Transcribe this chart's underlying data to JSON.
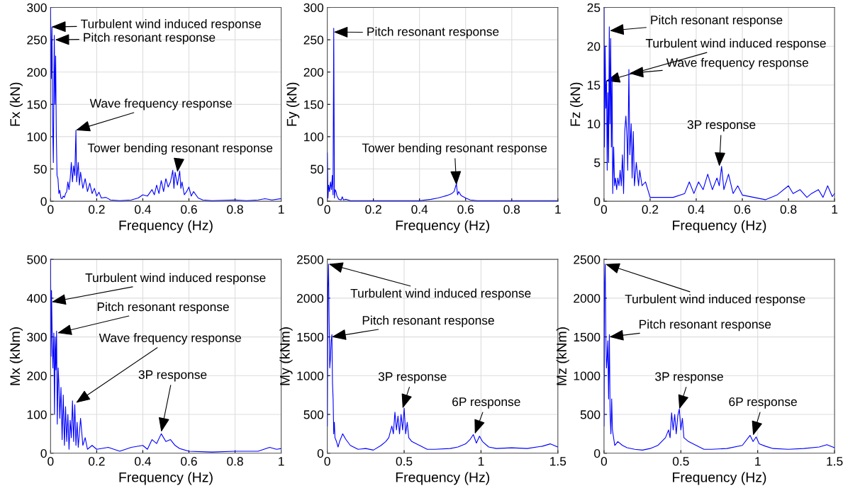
{
  "chart_data": [
    {
      "type": "line",
      "xlabel": "Frequency (Hz)",
      "ylabel": "Fx (kN)",
      "xlim": [
        0,
        1
      ],
      "ylim": [
        0,
        300
      ],
      "xticks": [
        0,
        0.2,
        0.4,
        0.6,
        0.8,
        1
      ],
      "yticks": [
        0,
        50,
        100,
        150,
        200,
        250,
        300
      ],
      "grid": true,
      "color": "#0000ff",
      "x": [
        0,
        0.003,
        0.006,
        0.009,
        0.012,
        0.016,
        0.019,
        0.022,
        0.025,
        0.028,
        0.032,
        0.036,
        0.04,
        0.045,
        0.05,
        0.055,
        0.06,
        0.065,
        0.07,
        0.075,
        0.08,
        0.085,
        0.09,
        0.095,
        0.1,
        0.105,
        0.11,
        0.113,
        0.12,
        0.125,
        0.13,
        0.14,
        0.15,
        0.16,
        0.17,
        0.18,
        0.19,
        0.2,
        0.21,
        0.22,
        0.24,
        0.26,
        0.3,
        0.35,
        0.38,
        0.4,
        0.42,
        0.44,
        0.45,
        0.46,
        0.47,
        0.48,
        0.49,
        0.5,
        0.51,
        0.52,
        0.53,
        0.535,
        0.54,
        0.55,
        0.56,
        0.565,
        0.57,
        0.58,
        0.59,
        0.6,
        0.61,
        0.62,
        0.64,
        0.66,
        0.7,
        0.8,
        0.85,
        0.9,
        0.93,
        0.96,
        1.0
      ],
      "values": [
        300,
        190,
        270,
        120,
        60,
        257,
        150,
        225,
        100,
        40,
        35,
        12,
        17,
        5,
        4,
        8,
        6,
        12,
        15,
        30,
        18,
        35,
        60,
        30,
        55,
        40,
        110,
        30,
        60,
        25,
        45,
        20,
        35,
        15,
        28,
        12,
        20,
        8,
        14,
        5,
        6,
        2,
        1,
        2,
        5,
        10,
        8,
        18,
        10,
        25,
        12,
        32,
        15,
        35,
        22,
        30,
        48,
        20,
        45,
        25,
        47,
        20,
        30,
        10,
        15,
        22,
        8,
        15,
        5,
        2,
        1,
        2,
        1,
        2,
        4,
        2,
        4
      ],
      "annotations": [
        {
          "text": "Turbulent wind induced response",
          "x": 0.005,
          "y": 270
        },
        {
          "text": "Pitch resonant response",
          "x": 0.02,
          "y": 250
        },
        {
          "text": "Wave frequency response",
          "x": 0.11,
          "y": 110
        },
        {
          "text": "Tower bending resonant response",
          "x": 0.55,
          "y": 45
        }
      ]
    },
    {
      "type": "line",
      "xlabel": "Frequency (Hz)",
      "ylabel": "Fy (kN)",
      "xlim": [
        0,
        1
      ],
      "ylim": [
        0,
        300
      ],
      "xticks": [
        0,
        0.2,
        0.4,
        0.6,
        0.8,
        1
      ],
      "yticks": [
        0,
        50,
        100,
        150,
        200,
        250,
        300
      ],
      "grid": true,
      "color": "#0000ff",
      "x": [
        0,
        0.003,
        0.006,
        0.01,
        0.014,
        0.018,
        0.022,
        0.025,
        0.028,
        0.031,
        0.034,
        0.038,
        0.042,
        0.05,
        0.06,
        0.065,
        0.07,
        0.08,
        0.1,
        0.2,
        0.3,
        0.4,
        0.45,
        0.48,
        0.5,
        0.52,
        0.54,
        0.55,
        0.56,
        0.565,
        0.57,
        0.58,
        0.6,
        0.62,
        0.65,
        0.7,
        0.8,
        1.0
      ],
      "values": [
        75,
        5,
        25,
        15,
        30,
        18,
        40,
        10,
        268,
        5,
        18,
        15,
        8,
        3,
        2,
        7,
        2,
        3,
        1,
        1,
        1,
        1,
        3,
        5,
        7,
        9,
        12,
        15,
        27,
        10,
        15,
        9,
        5,
        2,
        1,
        1,
        1,
        1
      ],
      "annotations": [
        {
          "text": "Pitch resonant response",
          "x": 0.028,
          "y": 262
        },
        {
          "text": "Tower bending resonant response",
          "x": 0.56,
          "y": 25
        }
      ]
    },
    {
      "type": "line",
      "xlabel": "Frequency (Hz)",
      "ylabel": "Fz (kN)",
      "xlim": [
        0,
        1
      ],
      "ylim": [
        0,
        25
      ],
      "xticks": [
        0,
        0.2,
        0.4,
        0.6,
        0.8,
        1
      ],
      "yticks": [
        0,
        5,
        10,
        15,
        20,
        25
      ],
      "grid": true,
      "color": "#0000ff",
      "x": [
        0,
        0.002,
        0.005,
        0.008,
        0.011,
        0.014,
        0.017,
        0.02,
        0.023,
        0.026,
        0.029,
        0.032,
        0.035,
        0.038,
        0.042,
        0.046,
        0.05,
        0.055,
        0.06,
        0.065,
        0.07,
        0.075,
        0.08,
        0.085,
        0.09,
        0.095,
        0.1,
        0.103,
        0.108,
        0.112,
        0.118,
        0.122,
        0.127,
        0.132,
        0.14,
        0.15,
        0.155,
        0.165,
        0.18,
        0.2,
        0.25,
        0.3,
        0.35,
        0.37,
        0.39,
        0.41,
        0.43,
        0.45,
        0.47,
        0.49,
        0.5,
        0.51,
        0.52,
        0.54,
        0.56,
        0.58,
        0.6,
        0.65,
        0.7,
        0.75,
        0.8,
        0.82,
        0.85,
        0.88,
        0.9,
        0.93,
        0.95,
        0.97,
        0.99,
        1.0
      ],
      "values": [
        25,
        7,
        20,
        12,
        15.5,
        4,
        14,
        5,
        22.5,
        10,
        21,
        7,
        16,
        1,
        7,
        2,
        3,
        1.5,
        3,
        2,
        4,
        2,
        6,
        1,
        9,
        11,
        8,
        4,
        17,
        6,
        10,
        3,
        9,
        2,
        5,
        2,
        4,
        2,
        2.5,
        0.5,
        0.5,
        0.5,
        1,
        2.5,
        1,
        2.5,
        1.5,
        3.5,
        1.5,
        3,
        2,
        4.5,
        1.5,
        3.5,
        1,
        2,
        0.8,
        0.5,
        0.2,
        0.8,
        2,
        1,
        1.5,
        0.5,
        1,
        1.5,
        0.5,
        2,
        0.6,
        1
      ],
      "annotations": [
        {
          "text": "Pitch resonant response",
          "x": 0.025,
          "y": 22
        },
        {
          "text": "Turbulent wind induced response",
          "x": 0.008,
          "y": 15.5
        },
        {
          "text": "Wave frequency response",
          "x": 0.11,
          "y": 16.5
        },
        {
          "text": "3P response",
          "x": 0.5,
          "y": 4.5
        }
      ]
    },
    {
      "type": "line",
      "xlabel": "Frequency (Hz)",
      "ylabel": "Mx (kNm)",
      "xlim": [
        0,
        1
      ],
      "ylim": [
        0,
        500
      ],
      "xticks": [
        0,
        0.2,
        0.4,
        0.6,
        0.8,
        1
      ],
      "yticks": [
        0,
        100,
        200,
        300,
        400,
        500
      ],
      "grid": true,
      "color": "#0000ff",
      "x": [
        0,
        0.002,
        0.004,
        0.007,
        0.01,
        0.014,
        0.017,
        0.02,
        0.023,
        0.026,
        0.029,
        0.033,
        0.036,
        0.04,
        0.045,
        0.05,
        0.055,
        0.06,
        0.065,
        0.07,
        0.075,
        0.08,
        0.085,
        0.09,
        0.095,
        0.1,
        0.105,
        0.11,
        0.115,
        0.12,
        0.13,
        0.14,
        0.15,
        0.16,
        0.18,
        0.2,
        0.25,
        0.3,
        0.35,
        0.4,
        0.42,
        0.44,
        0.46,
        0.48,
        0.5,
        0.52,
        0.54,
        0.56,
        0.6,
        0.7,
        0.8,
        0.9,
        0.95,
        0.98,
        1.0
      ],
      "values": [
        500,
        250,
        420,
        300,
        220,
        310,
        100,
        300,
        215,
        315,
        75,
        220,
        180,
        90,
        170,
        35,
        150,
        20,
        120,
        30,
        100,
        10,
        85,
        40,
        135,
        30,
        125,
        20,
        80,
        15,
        90,
        20,
        40,
        10,
        20,
        10,
        15,
        5,
        15,
        20,
        10,
        35,
        25,
        50,
        30,
        35,
        20,
        12,
        5,
        3,
        5,
        5,
        15,
        10,
        12
      ],
      "annotations": [
        {
          "text": "Turbulent wind induced response",
          "x": 0.005,
          "y": 390
        },
        {
          "text": "Pitch resonant response",
          "x": 0.03,
          "y": 310
        },
        {
          "text": "Wave frequency response",
          "x": 0.11,
          "y": 130
        },
        {
          "text": "3P response",
          "x": 0.48,
          "y": 55
        }
      ]
    },
    {
      "type": "line",
      "xlabel": "Frequency (Hz)",
      "ylabel": "My (kNm)",
      "xlim": [
        0,
        1.5
      ],
      "ylim": [
        0,
        2500
      ],
      "xticks": [
        0,
        0.5,
        1,
        1.5
      ],
      "yticks": [
        0,
        500,
        1000,
        1500,
        2000,
        2500
      ],
      "grid": true,
      "color": "#0000ff",
      "x": [
        0,
        0.004,
        0.008,
        0.012,
        0.016,
        0.02,
        0.025,
        0.03,
        0.034,
        0.038,
        0.042,
        0.046,
        0.05,
        0.06,
        0.07,
        0.08,
        0.1,
        0.12,
        0.15,
        0.2,
        0.25,
        0.3,
        0.35,
        0.38,
        0.4,
        0.42,
        0.43,
        0.44,
        0.45,
        0.46,
        0.47,
        0.48,
        0.49,
        0.5,
        0.51,
        0.52,
        0.53,
        0.55,
        0.6,
        0.65,
        0.7,
        0.8,
        0.85,
        0.9,
        0.93,
        0.95,
        0.97,
        0.99,
        1.01,
        1.05,
        1.1,
        1.2,
        1.3,
        1.4,
        1.45,
        1.5
      ],
      "values": [
        350,
        2150,
        2440,
        1700,
        1100,
        1200,
        1450,
        1530,
        900,
        700,
        250,
        400,
        200,
        150,
        80,
        150,
        250,
        180,
        100,
        50,
        60,
        40,
        100,
        150,
        200,
        350,
        250,
        530,
        300,
        480,
        250,
        500,
        300,
        580,
        250,
        400,
        200,
        150,
        100,
        50,
        50,
        60,
        80,
        120,
        180,
        240,
        130,
        220,
        150,
        80,
        60,
        70,
        60,
        90,
        120,
        80
      ],
      "annotations": [
        {
          "text": "Turbulent wind induced response",
          "x": 0.01,
          "y": 2440
        },
        {
          "text": "Pitch resonant response",
          "x": 0.03,
          "y": 1500
        },
        {
          "text": "3P response",
          "x": 0.49,
          "y": 580
        },
        {
          "text": "6P response",
          "x": 0.96,
          "y": 250
        }
      ]
    },
    {
      "type": "line",
      "xlabel": "Frequency (Hz)",
      "ylabel": "Mz (kNm)",
      "xlim": [
        0,
        1.5
      ],
      "ylim": [
        0,
        2500
      ],
      "xticks": [
        0,
        0.5,
        1,
        1.5
      ],
      "yticks": [
        0,
        500,
        1000,
        1500,
        2000,
        2500
      ],
      "grid": true,
      "color": "#0000ff",
      "x": [
        0,
        0.004,
        0.008,
        0.012,
        0.016,
        0.02,
        0.025,
        0.03,
        0.035,
        0.04,
        0.045,
        0.05,
        0.055,
        0.07,
        0.09,
        0.12,
        0.15,
        0.2,
        0.25,
        0.3,
        0.35,
        0.4,
        0.42,
        0.43,
        0.44,
        0.45,
        0.46,
        0.47,
        0.48,
        0.49,
        0.5,
        0.51,
        0.52,
        0.55,
        0.6,
        0.65,
        0.7,
        0.8,
        0.9,
        0.95,
        0.97,
        0.99,
        1.01,
        1.05,
        1.1,
        1.2,
        1.3,
        1.4,
        1.45,
        1.5
      ],
      "values": [
        350,
        2200,
        2440,
        1500,
        1100,
        1200,
        1450,
        700,
        1530,
        500,
        250,
        700,
        300,
        100,
        150,
        100,
        70,
        50,
        40,
        60,
        100,
        200,
        300,
        200,
        520,
        300,
        500,
        250,
        480,
        570,
        300,
        450,
        200,
        150,
        100,
        50,
        50,
        60,
        100,
        230,
        150,
        210,
        120,
        90,
        60,
        50,
        60,
        80,
        110,
        70
      ],
      "annotations": [
        {
          "text": "Turbulent wind induced response",
          "x": 0.01,
          "y": 2440
        },
        {
          "text": "Pitch resonant response",
          "x": 0.035,
          "y": 1500
        },
        {
          "text": "3P response",
          "x": 0.49,
          "y": 570
        },
        {
          "text": "6P response",
          "x": 0.97,
          "y": 230
        }
      ]
    }
  ]
}
